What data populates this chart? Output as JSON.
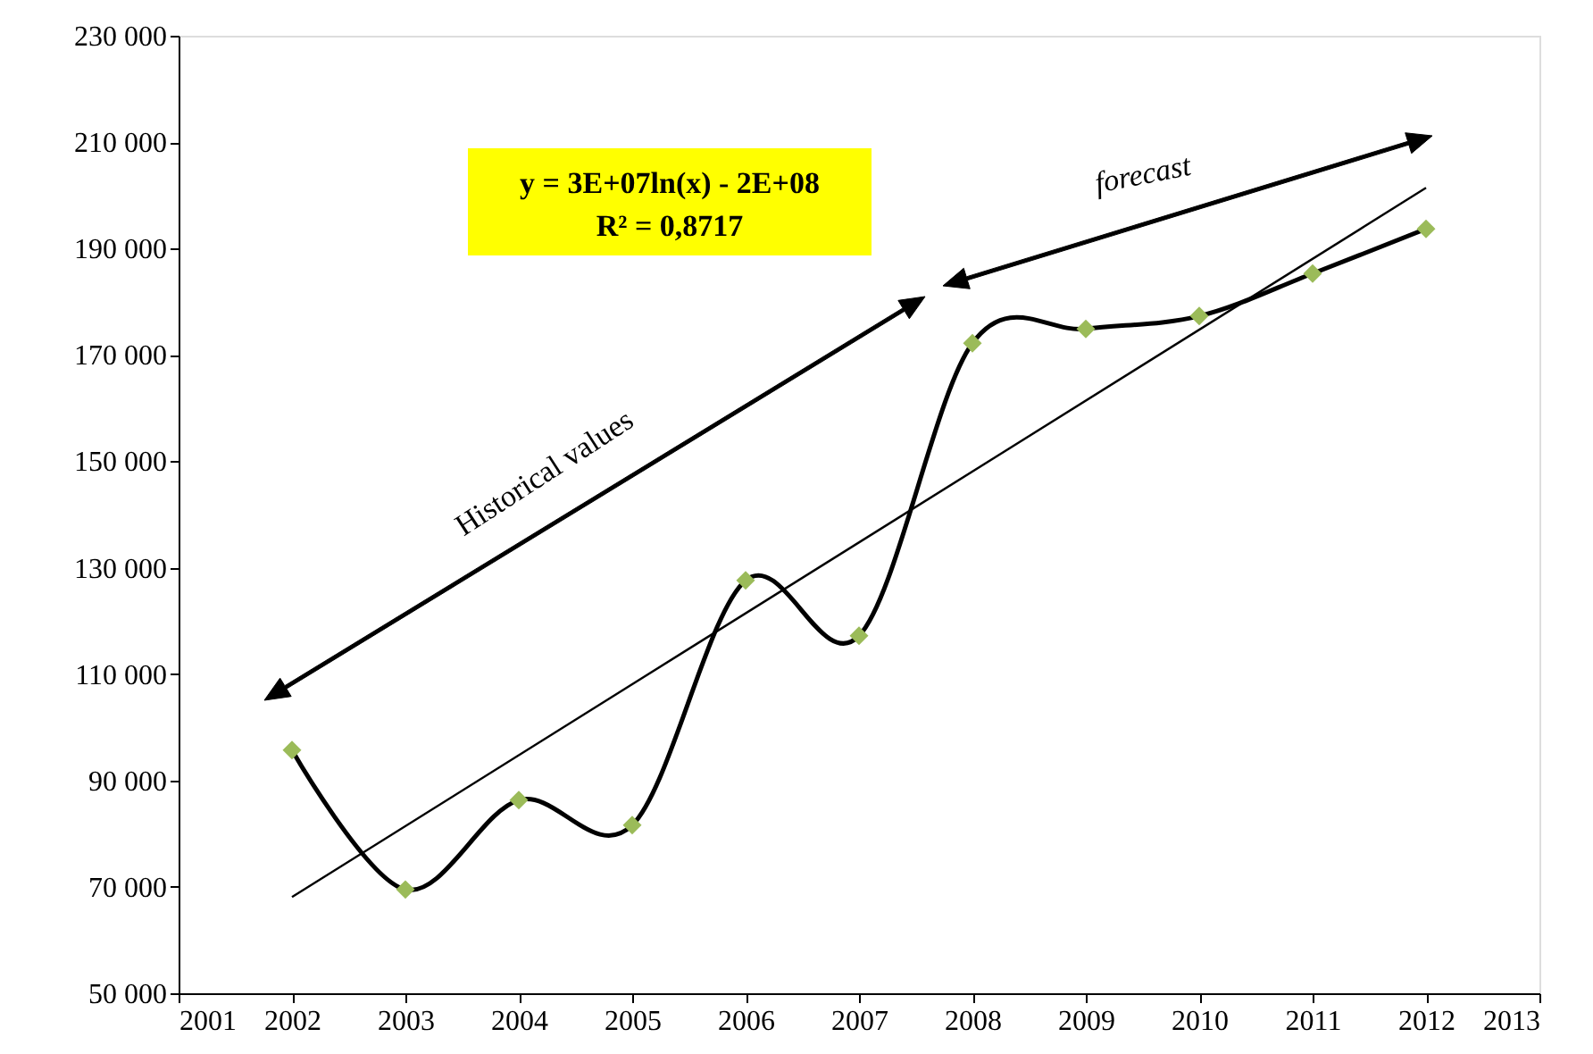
{
  "chart_data": {
    "type": "line",
    "x": [
      2002,
      2003,
      2004,
      2005,
      2006,
      2007,
      2008,
      2009,
      2010,
      2011,
      2012
    ],
    "series": [
      {
        "type": "line",
        "color": "#000000",
        "marker": "none",
        "values": [
          95700,
          69500,
          86300,
          81600,
          127600,
          117200,
          172200,
          174900,
          177300,
          185300,
          193700
        ]
      },
      {
        "type": "scatter",
        "color": "#9bbb59",
        "marker": "diamond",
        "values": [
          95700,
          69500,
          86300,
          81600,
          127600,
          117200,
          172200,
          174900,
          177300,
          185300,
          193700
        ]
      },
      {
        "type": "line",
        "color": "#000000",
        "marker": "none",
        "x": [
          2002,
          2012
        ],
        "values": [
          68100,
          201400
        ]
      }
    ],
    "xlim": [
      2001,
      2013
    ],
    "xticks": [
      2001,
      2002,
      2003,
      2004,
      2005,
      2006,
      2007,
      2008,
      2009,
      2010,
      2011,
      2012,
      2013
    ],
    "ylim": [
      50000,
      230000
    ],
    "yticks": [
      {
        "value": 50000,
        "label": "50 000"
      },
      {
        "value": 70000,
        "label": "70 000"
      },
      {
        "value": 90000,
        "label": "90 000"
      },
      {
        "value": 110000,
        "label": "110 000"
      },
      {
        "value": 130000,
        "label": "130 000"
      },
      {
        "value": 150000,
        "label": "150 000"
      },
      {
        "value": 170000,
        "label": "170 000"
      },
      {
        "value": 190000,
        "label": "190 000"
      },
      {
        "value": 210000,
        "label": "210 000"
      },
      {
        "value": 230000,
        "label": "230 000"
      }
    ],
    "annotations": [
      "y = 3E+07ln(x) - 2E+08",
      "R² = 0,8717",
      "Historical values",
      "forecast"
    ],
    "grid": false
  }
}
